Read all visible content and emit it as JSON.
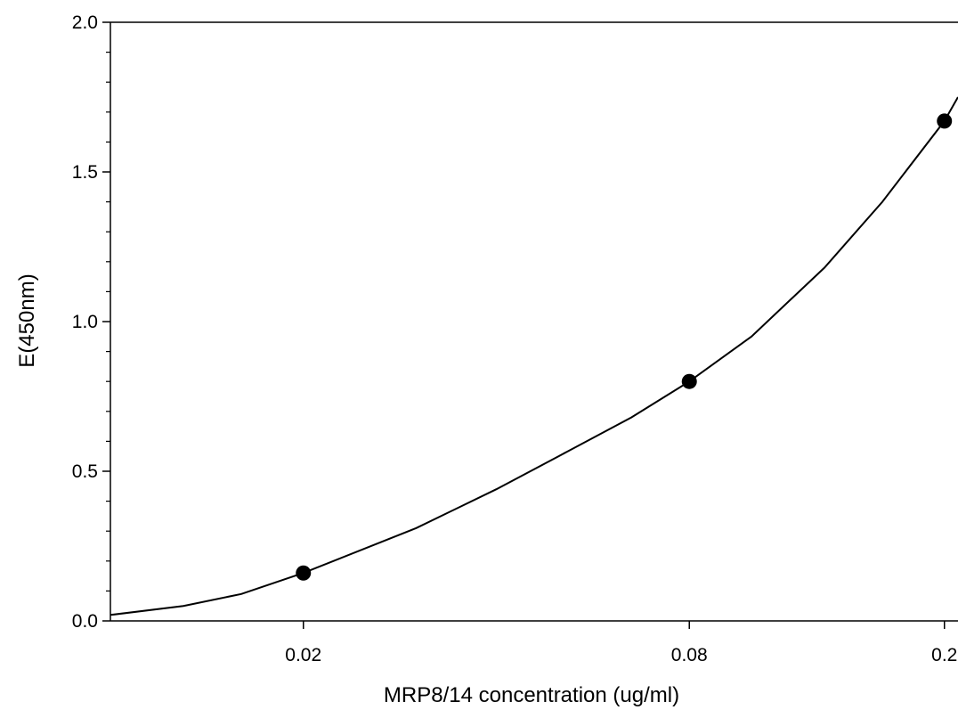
{
  "chart_data": {
    "type": "scatter",
    "title": "",
    "xlabel": "MRP8/14 concentration (ug/ml)",
    "ylabel": "E(450nm)",
    "x_scale": "log",
    "xlim": [
      0.01,
      0.21
    ],
    "ylim": [
      0.0,
      2.0
    ],
    "x_ticks": [
      0.02,
      0.08,
      0.2
    ],
    "x_tick_labels": [
      "0.02",
      "0.08",
      "0.2"
    ],
    "y_ticks": [
      0.0,
      0.5,
      1.0,
      1.5,
      2.0
    ],
    "y_tick_labels": [
      "0.0",
      "0.5",
      "1.0",
      "1.5",
      "2.0"
    ],
    "y_minor_ticks": [
      0.1,
      0.2,
      0.3,
      0.4,
      0.6,
      0.7,
      0.8,
      0.9,
      1.1,
      1.2,
      1.3,
      1.4,
      1.6,
      1.7,
      1.8,
      1.9
    ],
    "points": [
      {
        "x": 0.02,
        "y": 0.16
      },
      {
        "x": 0.08,
        "y": 0.8
      },
      {
        "x": 0.2,
        "y": 1.67
      }
    ],
    "fit_curve": {
      "type": "line",
      "x": [
        0.01,
        0.013,
        0.016,
        0.02,
        0.03,
        0.04,
        0.05,
        0.065,
        0.08,
        0.1,
        0.13,
        0.16,
        0.2,
        0.21
      ],
      "y": [
        0.02,
        0.05,
        0.09,
        0.16,
        0.31,
        0.44,
        0.55,
        0.68,
        0.8,
        0.95,
        1.18,
        1.4,
        1.67,
        1.75
      ]
    },
    "grid": false,
    "colors": {
      "axis": "#000000",
      "marker": "#000000",
      "line": "#000000"
    }
  }
}
